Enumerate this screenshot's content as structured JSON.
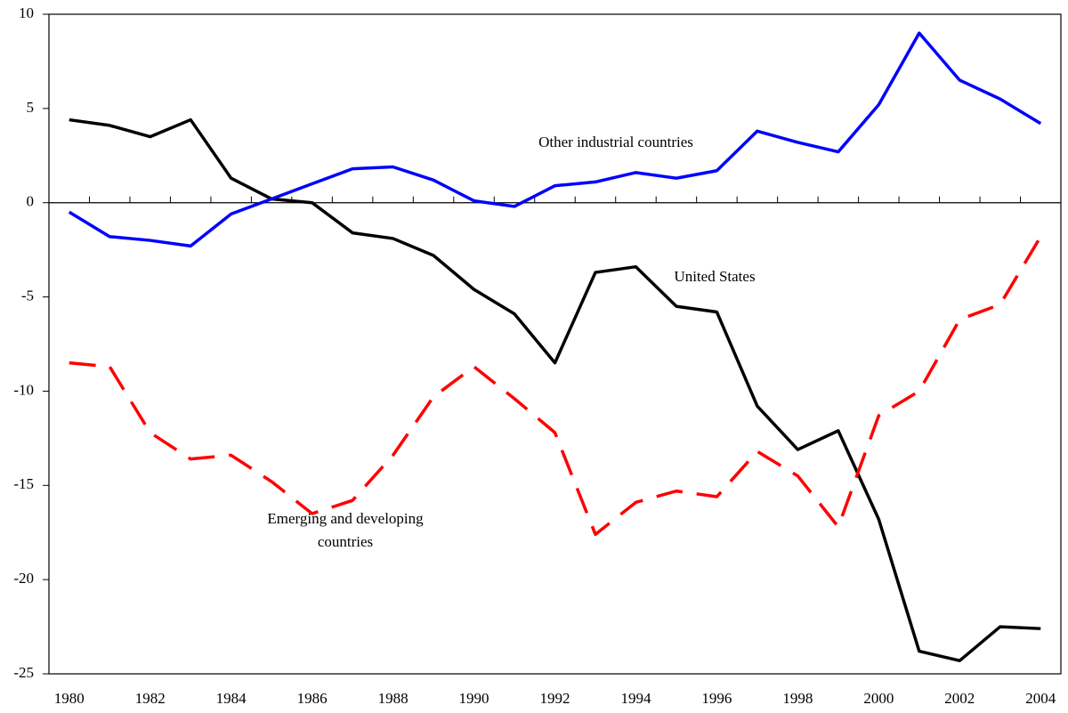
{
  "chart_data": {
    "type": "line",
    "categories": [
      "1980",
      null,
      "1982",
      null,
      "1984",
      null,
      "1986",
      null,
      "1988",
      null,
      "1990",
      null,
      "1992",
      null,
      "1994",
      null,
      "1996",
      null,
      "1998",
      null,
      "2000",
      null,
      "2002",
      null,
      "2004"
    ],
    "series": [
      {
        "name": "United States",
        "color": "#000000",
        "dashed": false,
        "values": [
          4.4,
          4.1,
          3.5,
          4.4,
          1.3,
          0.2,
          0,
          -1.6,
          -1.9,
          -2.8,
          -4.6,
          -5.9,
          -8.5,
          -3.7,
          -3.4,
          -5.5,
          -5.8,
          -10.8,
          -13.1,
          -12.1,
          -16.8,
          -23.8,
          -24.3,
          -22.5,
          -22.6
        ]
      },
      {
        "name": "Other industrial countries",
        "color": "#0000ff",
        "dashed": false,
        "values": [
          -0.5,
          -1.8,
          -2.0,
          -2.3,
          -0.6,
          0.2,
          1.0,
          1.8,
          1.9,
          1.2,
          0.1,
          -0.2,
          0.9,
          1.1,
          1.6,
          1.3,
          1.7,
          3.8,
          3.2,
          2.7,
          5.2,
          9.0,
          6.5,
          5.5,
          4.2
        ]
      },
      {
        "name": "Emerging and developing countries",
        "color": "#ff0000",
        "dashed": true,
        "values": [
          -8.5,
          -8.7,
          -12.2,
          -13.6,
          -13.4,
          -14.8,
          -16.5,
          -15.8,
          -13.4,
          -10.3,
          -8.7,
          -10.4,
          -12.2,
          -17.6,
          -15.9,
          -15.3,
          -15.6,
          -13.2,
          -14.5,
          -17.2,
          -11.3,
          -10.0,
          -6.2,
          -5.4,
          -1.8
        ]
      }
    ],
    "ylim": [
      -25,
      10
    ],
    "yticks": [
      -25,
      -20,
      -15,
      -10,
      -5,
      0,
      5,
      10
    ]
  }
}
